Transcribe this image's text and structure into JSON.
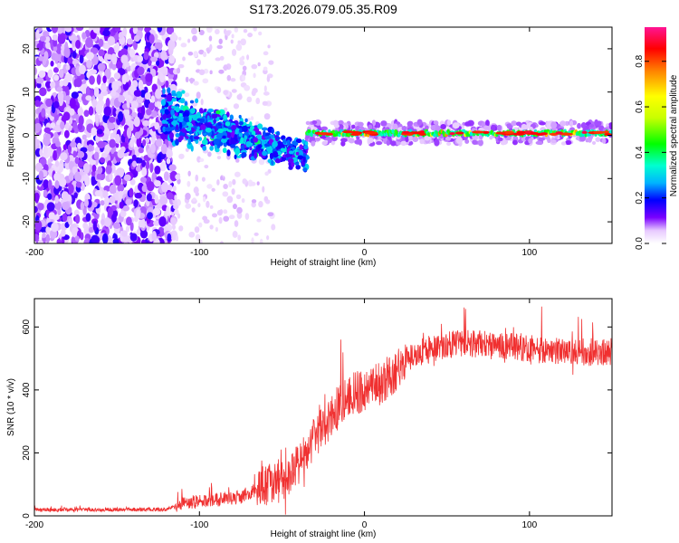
{
  "chart_data": [
    {
      "type": "heatmap",
      "title": "S173.2026.079.05.35.R09",
      "xlabel": "Height of straight line (km)",
      "ylabel": "Frequency (Hz)",
      "xlim": [
        -200,
        150
      ],
      "ylim": [
        -25,
        25
      ],
      "xticks": [
        -200,
        -100,
        0,
        100
      ],
      "yticks": [
        -20,
        -10,
        0,
        10,
        20
      ],
      "colorbar": {
        "label": "Normalized spectral amplitude",
        "range": [
          0,
          0.95
        ],
        "ticks": [
          "0.0",
          "0.2",
          "0.4",
          "0.6",
          "0.8"
        ],
        "colors": [
          "#ffffff",
          "#e7c9ff",
          "#7a00ff",
          "#0000ff",
          "#00b4ff",
          "#00ffd0",
          "#00ff00",
          "#c8ff00",
          "#ffff00",
          "#ff8000",
          "#ff0000",
          "#ff1493"
        ]
      },
      "regions": [
        {
          "x_range": [
            -200,
            -115
          ],
          "description": "broadband noise",
          "freq_range": [
            -25,
            25
          ],
          "amplitude": 0.05
        },
        {
          "x_range": [
            -122,
            -35
          ],
          "description": "descending signal",
          "freq_start": 5,
          "freq_end": -5,
          "amplitude": 0.3
        },
        {
          "x_range": [
            -35,
            150
          ],
          "description": "stable tone",
          "freq": 0.5,
          "amplitude": 0.8
        }
      ]
    },
    {
      "type": "line",
      "title": "",
      "xlabel": "Height of straight line (km)",
      "ylabel": "SNR (10 * v/v)",
      "xlim": [
        -200,
        150
      ],
      "ylim": [
        0,
        690
      ],
      "xticks": [
        -200,
        -100,
        0,
        100
      ],
      "yticks": [
        0,
        200,
        400,
        600
      ],
      "color": "#f03030",
      "profile_x": [
        -200,
        -120,
        -110,
        -75,
        -60,
        -45,
        -30,
        -20,
        -10,
        0,
        10,
        20,
        30,
        45,
        60,
        80,
        100,
        120,
        150
      ],
      "profile_y": [
        20,
        20,
        40,
        60,
        100,
        120,
        250,
        320,
        380,
        400,
        420,
        470,
        510,
        540,
        550,
        540,
        530,
        520,
        520
      ]
    }
  ]
}
